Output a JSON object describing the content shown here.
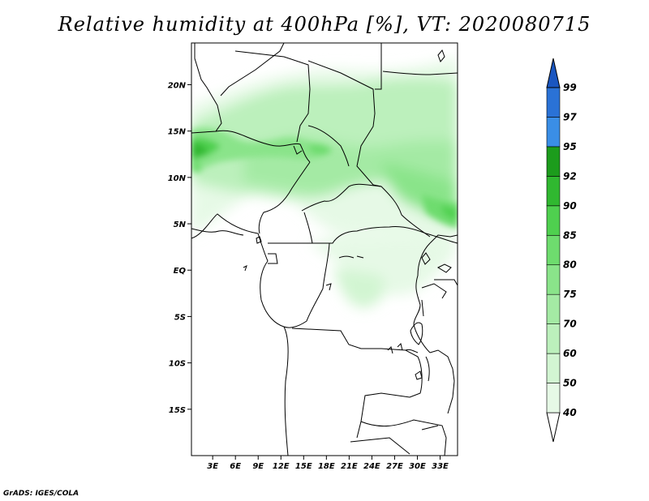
{
  "title": "Relative humidity at 400hPa [%], VT: 2020080715",
  "credit": "GrADS: IGES/COLA",
  "map": {
    "lat_labels": [
      "20N",
      "15N",
      "10N",
      "5N",
      "EQ",
      "5S",
      "10S",
      "15S"
    ],
    "lon_labels": [
      "3E",
      "6E",
      "9E",
      "12E",
      "15E",
      "18E",
      "21E",
      "24E",
      "27E",
      "30E",
      "33E"
    ],
    "lat_range": [
      -20,
      24.5
    ],
    "lon_range": [
      0.2,
      35.3
    ]
  },
  "colorbar": {
    "levels": [
      "40",
      "50",
      "60",
      "70",
      "75",
      "80",
      "85",
      "90",
      "92",
      "95",
      "97",
      "99"
    ],
    "colors": [
      "#e6f9e6",
      "#d2f5d2",
      "#bcf0bc",
      "#a4eaa4",
      "#8ae48a",
      "#6edc6e",
      "#4fd04f",
      "#30b830",
      "#1c9c1c",
      "#3a8ee6",
      "#2a72d6",
      "#1a56c0"
    ]
  }
}
